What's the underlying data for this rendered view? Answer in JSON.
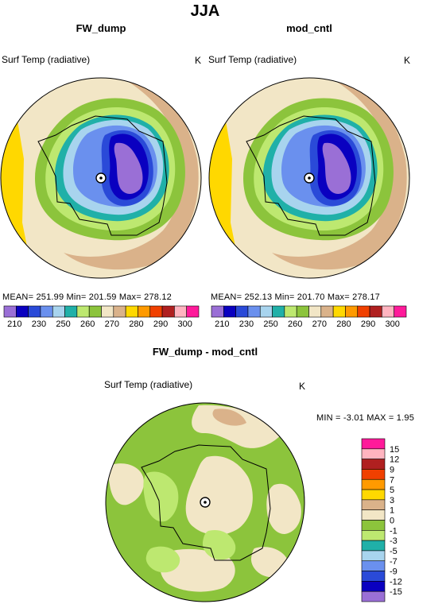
{
  "figure": {
    "title": "JJA"
  },
  "panels": [
    {
      "id": "fw_dump",
      "title": "FW_dump",
      "variable": "Surf Temp (radiative)",
      "units": "K",
      "stats": "MEAN= 251.99   Min= 201.59   Max= 278.12"
    },
    {
      "id": "mod_cntl",
      "title": "mod_cntl",
      "variable": "Surf Temp (radiative)",
      "units": "K",
      "stats": "MEAN= 252.13   Min= 201.70   Max= 278.17"
    },
    {
      "id": "difference",
      "title": "FW_dump - mod_cntl",
      "variable": "Surf Temp (radiative)",
      "units": "K",
      "stats": "MIN =   -3.01  MAX =    1.95"
    }
  ],
  "colors": {
    "abs_scale": [
      "#9a6fd6",
      "#0a00c0",
      "#2a4ad8",
      "#6a90ee",
      "#a8d4ee",
      "#20b0a8",
      "#bde870",
      "#8cc43c",
      "#f2e6c6",
      "#dab28a",
      "#ffd800",
      "#ff9a00",
      "#f04000",
      "#b02020",
      "#ffb4c0",
      "#ff1a9a"
    ],
    "diff_scale": [
      "#9a6fd6",
      "#0a00c0",
      "#2a4ad8",
      "#6a90ee",
      "#a8d4ee",
      "#20b0a8",
      "#bde870",
      "#8cc43c",
      "#f2e6c6",
      "#dab28a",
      "#ffd800",
      "#ff9a00",
      "#f04000",
      "#b02020",
      "#ffb4c0",
      "#ff1a9a"
    ]
  },
  "chart_data": [
    {
      "type": "heatmap",
      "title": "FW_dump",
      "subtitle": "Surf Temp (radiative)",
      "units": "K",
      "projection": "polar stereographic (south pole)",
      "stats": {
        "mean": 251.99,
        "min": 201.59,
        "max": 278.12
      },
      "colorbar": {
        "levels": [
          205,
          210,
          220,
          230,
          240,
          250,
          255,
          260,
          265,
          270,
          275,
          280,
          285,
          290,
          295,
          300
        ],
        "tick_labels": [
          "210",
          "230",
          "250",
          "260",
          "270",
          "280",
          "290",
          "300"
        ],
        "orientation": "horizontal"
      }
    },
    {
      "type": "heatmap",
      "title": "mod_cntl",
      "subtitle": "Surf Temp (radiative)",
      "units": "K",
      "projection": "polar stereographic (south pole)",
      "stats": {
        "mean": 252.13,
        "min": 201.7,
        "max": 278.17
      },
      "colorbar": {
        "levels": [
          205,
          210,
          220,
          230,
          240,
          250,
          255,
          260,
          265,
          270,
          275,
          280,
          285,
          290,
          295,
          300
        ],
        "tick_labels": [
          "210",
          "230",
          "250",
          "260",
          "270",
          "280",
          "290",
          "300"
        ],
        "orientation": "horizontal"
      }
    },
    {
      "type": "heatmap",
      "title": "FW_dump - mod_cntl",
      "subtitle": "Surf Temp (radiative)",
      "units": "K",
      "projection": "polar stereographic (south pole)",
      "stats": {
        "min": -3.01,
        "max": 1.95
      },
      "colorbar": {
        "levels": [
          -15,
          -12,
          -9,
          -7,
          -5,
          -3,
          -1,
          0,
          1,
          3,
          5,
          7,
          9,
          12,
          15
        ],
        "tick_labels": [
          "15",
          "12",
          "9",
          "7",
          "5",
          "3",
          "1",
          "0",
          "-1",
          "-3",
          "-5",
          "-7",
          "-9",
          "-12",
          "-15"
        ],
        "orientation": "vertical"
      }
    }
  ]
}
